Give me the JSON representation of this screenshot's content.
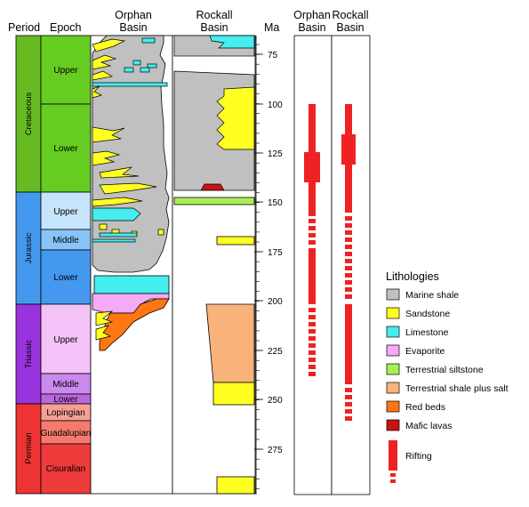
{
  "headers": {
    "period": "Period",
    "epoch": "Epoch",
    "orphan_l1": "Orphan",
    "orphan_l2": "Basin",
    "rockall_l1": "Rockall",
    "rockall_l2": "Basin",
    "ma": "Ma",
    "rift_orphan_l1": "Orphan",
    "rift_orphan_l2": "Basin",
    "rift_rockall_l1": "Rockall",
    "rift_rockall_l2": "Basin"
  },
  "timescale": {
    "ticks": [
      "75",
      "100",
      "125",
      "150",
      "175",
      "200",
      "225",
      "250",
      "275"
    ],
    "periods": [
      {
        "name": "Cretaceous",
        "color": "#66bb22"
      },
      {
        "name": "Jurassic",
        "color": "#4499ee"
      },
      {
        "name": "Triassic",
        "color": "#9933dd"
      },
      {
        "name": "Permian",
        "color": "#ee3333"
      }
    ],
    "epochs": [
      {
        "name": "Upper",
        "color": "#66cc22"
      },
      {
        "name": "Lower",
        "color": "#66cc22"
      },
      {
        "name": "Upper",
        "color": "#c6e4fb"
      },
      {
        "name": "Middle",
        "color": "#88c4f8"
      },
      {
        "name": "Lower",
        "color": "#4499ee"
      },
      {
        "name": "Upper",
        "color": "#f4c2f7"
      },
      {
        "name": "Middle",
        "color": "#cc88ee"
      },
      {
        "name": "Lower",
        "color": "#bb66dd"
      },
      {
        "name": "Lopingian",
        "color": "#f59f95"
      },
      {
        "name": "Guadalupian",
        "color": "#f57b6e"
      },
      {
        "name": "Cisuralian",
        "color": "#ee3b3b"
      }
    ]
  },
  "legend": {
    "title": "Lithologies",
    "items": [
      {
        "label": "Marine shale",
        "color": "#c0c0c0"
      },
      {
        "label": "Sandstone",
        "color": "#ffff22"
      },
      {
        "label": "Limestone",
        "color": "#44eeee"
      },
      {
        "label": "Evaporite",
        "color": "#f4aaf4"
      },
      {
        "label": "Terrestrial siltstone",
        "color": "#aaee55"
      },
      {
        "label": "Terrestrial shale plus salt",
        "color": "#f8b27a"
      },
      {
        "label": "Red beds",
        "color": "#ff7711"
      },
      {
        "label": "Mafic lavas",
        "color": "#cc1111"
      }
    ],
    "rifting_label": "Rifting",
    "rifting_color": "#ee2222"
  }
}
